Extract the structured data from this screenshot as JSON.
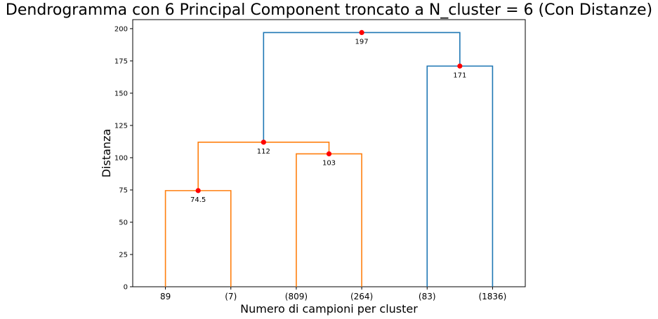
{
  "chart_data": {
    "type": "dendrogram",
    "title": "Dendrogramma con 6 Principal Component troncato a N_cluster = 6 (Con Distanze)",
    "xlabel": "Numero di campioni per cluster",
    "ylabel": "Distanza",
    "ylim": [
      0,
      207
    ],
    "yticks": [
      0,
      25,
      50,
      75,
      100,
      125,
      150,
      175,
      200
    ],
    "leaves": [
      "89",
      "(7)",
      "(809)",
      "(264)",
      "(83)",
      "(1836)"
    ],
    "merges": [
      {
        "left": 0,
        "right": 1,
        "left_height": 0,
        "right_height": 0,
        "height": 74.5,
        "label": "74.5",
        "color": "#ff7f0e"
      },
      {
        "left": 2,
        "right": 3,
        "left_height": 0,
        "right_height": 0,
        "height": 103,
        "label": "103",
        "color": "#ff7f0e"
      },
      {
        "left": 0.5,
        "right": 2.5,
        "left_height": 74.5,
        "right_height": 103,
        "height": 112,
        "label": "112",
        "color": "#ff7f0e"
      },
      {
        "left": 4,
        "right": 5,
        "left_height": 0,
        "right_height": 0,
        "height": 171,
        "label": "171",
        "color": "#1f77b4"
      },
      {
        "left": 1.5,
        "right": 4.5,
        "left_height": 112,
        "right_height": 171,
        "height": 197,
        "label": "197",
        "color": "#1f77b4"
      }
    ],
    "marker_color": "#ff0000",
    "grid": false
  }
}
